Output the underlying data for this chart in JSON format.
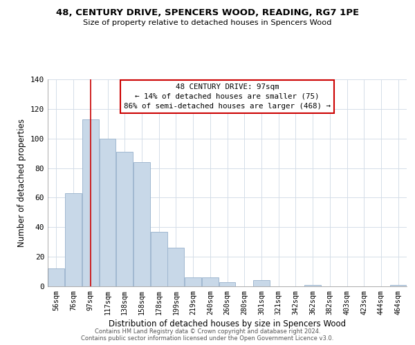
{
  "title": "48, CENTURY DRIVE, SPENCERS WOOD, READING, RG7 1PE",
  "subtitle": "Size of property relative to detached houses in Spencers Wood",
  "xlabel": "Distribution of detached houses by size in Spencers Wood",
  "ylabel": "Number of detached properties",
  "bar_color": "#c8d8e8",
  "bar_edge_color": "#a0b8d0",
  "categories": [
    "56sqm",
    "76sqm",
    "97sqm",
    "117sqm",
    "138sqm",
    "158sqm",
    "178sqm",
    "199sqm",
    "219sqm",
    "240sqm",
    "260sqm",
    "280sqm",
    "301sqm",
    "321sqm",
    "342sqm",
    "362sqm",
    "382sqm",
    "403sqm",
    "423sqm",
    "444sqm",
    "464sqm"
  ],
  "values": [
    12,
    63,
    113,
    100,
    91,
    84,
    37,
    26,
    6,
    6,
    3,
    0,
    4,
    0,
    0,
    1,
    0,
    0,
    0,
    0,
    1
  ],
  "ylim": [
    0,
    140
  ],
  "yticks": [
    0,
    20,
    40,
    60,
    80,
    100,
    120,
    140
  ],
  "property_line_x": 2,
  "property_line_color": "#cc0000",
  "annotation_line1": "48 CENTURY DRIVE: 97sqm",
  "annotation_line2": "← 14% of detached houses are smaller (75)",
  "annotation_line3": "86% of semi-detached houses are larger (468) →",
  "annotation_box_color": "#ffffff",
  "annotation_box_edgecolor": "#cc0000",
  "footer_line1": "Contains HM Land Registry data © Crown copyright and database right 2024.",
  "footer_line2": "Contains public sector information licensed under the Open Government Licence v3.0.",
  "background_color": "#ffffff",
  "grid_color": "#d4dde8"
}
